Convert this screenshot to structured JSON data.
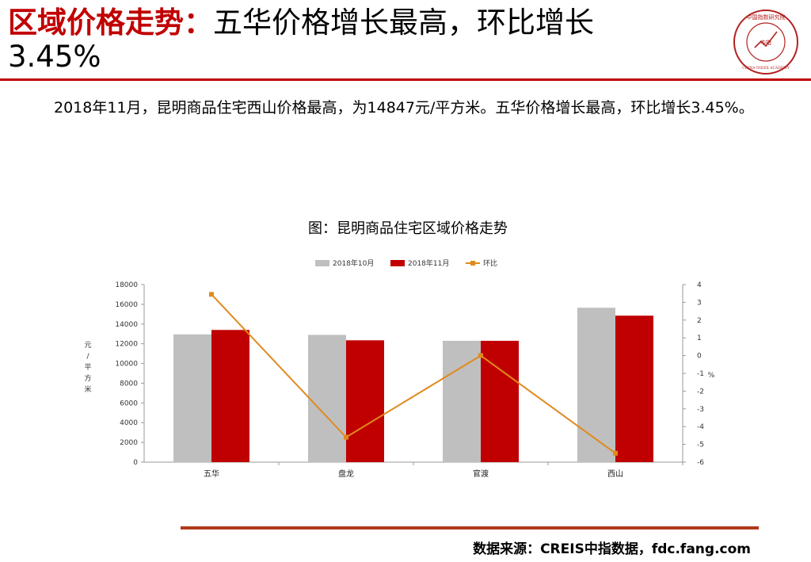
{
  "header": {
    "title_emphasis": "区域价格走势：",
    "title_rest": "五华价格增长最高，环比增长",
    "title_line2": "3.45%"
  },
  "logo": {
    "text": "中国指数研究院",
    "center": "中指",
    "english": "CHINA INDEX ACADEMY"
  },
  "body": {
    "paragraph": "2018年11月，昆明商品住宅西山价格最高，为14847元/平方米。五华价格增长最高，环比增长3.45%。"
  },
  "footer": {
    "source": "数据来源：CREIS中指数据，fdc.fang.com"
  },
  "colors": {
    "accent": "#c00000",
    "series1": "#bfbfbf",
    "series2": "#c00000",
    "line": "#e08a1e"
  },
  "chart_data": {
    "type": "bar",
    "title": "图：昆明商品住宅区域价格走势",
    "categories": [
      "五华",
      "盘龙",
      "官渡",
      "西山"
    ],
    "series": [
      {
        "name": "2018年10月",
        "type": "bar",
        "axis": "left",
        "values": [
          12950,
          12900,
          12300,
          15650
        ]
      },
      {
        "name": "2018年11月",
        "type": "bar",
        "axis": "left",
        "values": [
          13400,
          12350,
          12300,
          14847
        ]
      },
      {
        "name": "环比",
        "type": "line",
        "axis": "right",
        "values": [
          3.45,
          -4.6,
          0.0,
          -5.5
        ]
      }
    ],
    "ylabel": "元/平方米",
    "y2label": "%",
    "ylim": [
      0,
      18000
    ],
    "y2lim": [
      -6,
      4
    ],
    "yticks": [
      "0",
      "2000",
      "4000",
      "6000",
      "8000",
      "10000",
      "12000",
      "14000",
      "16000",
      "18000"
    ],
    "y2ticks": [
      "-6",
      "-5",
      "-4",
      "-3",
      "-2",
      "-1",
      "0",
      "1",
      "2",
      "3",
      "4"
    ],
    "legend": "top",
    "grid": false
  }
}
